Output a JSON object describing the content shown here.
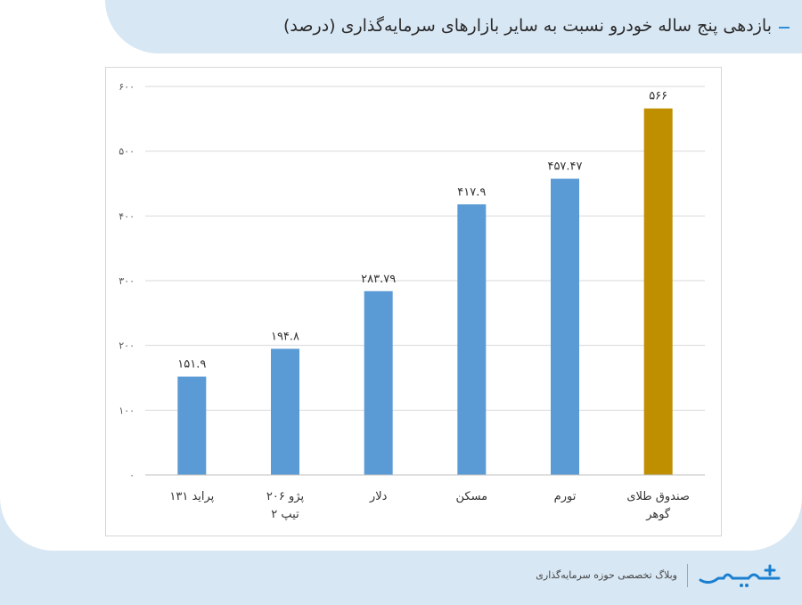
{
  "header": {
    "title": "بازدهی پنج ساله خودرو نسبت به سایر بازارهای سرمایه‌گذاری (درصد)"
  },
  "footer": {
    "tagline": "وبلاگ تخصصی حوزه سرمایه‌گذاری"
  },
  "colors": {
    "bar": "#5b9bd5",
    "highlight": "#bf8f00",
    "accent": "#2e8fd8",
    "logo": "#1a7fd0"
  },
  "chart_data": {
    "type": "bar",
    "title": "",
    "xlabel": "",
    "ylabel": "",
    "ylim": [
      0,
      600
    ],
    "y_ticks": [
      "۰",
      "۱۰۰",
      "۲۰۰",
      "۳۰۰",
      "۴۰۰",
      "۵۰۰",
      "۶۰۰"
    ],
    "y_tick_values": [
      0,
      100,
      200,
      300,
      400,
      500,
      600
    ],
    "grid": true,
    "categories": [
      "پراید ۱۳۱",
      "پژو ۲۰۶ تیپ ۲",
      "دلار",
      "مسکن",
      "تورم",
      "صندوق طلای گوهر"
    ],
    "values": [
      151.9,
      194.8,
      283.79,
      417.9,
      457.47,
      566
    ],
    "data_labels": [
      "۱۵۱.۹",
      "۱۹۴.۸",
      "۲۸۳.۷۹",
      "۴۱۷.۹",
      "۴۵۷.۴۷",
      "۵۶۶"
    ],
    "highlight_index": 5
  }
}
